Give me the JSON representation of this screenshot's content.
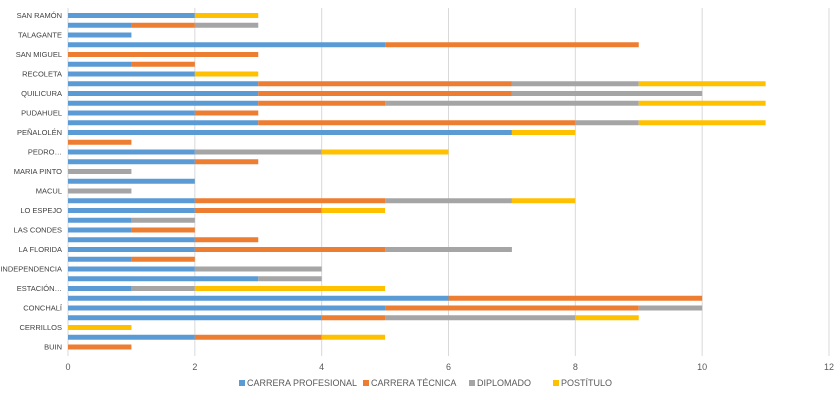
{
  "chart_data": {
    "type": "bar",
    "orientation": "horizontal",
    "stacked": true,
    "xlim": [
      0,
      12
    ],
    "x_ticks": [
      0,
      2,
      4,
      6,
      8,
      10,
      12
    ],
    "grid": true,
    "legend_position": "bottom",
    "categories": [
      "SAN RAMÓN",
      "",
      "TALAGANTE",
      "",
      "SAN MIGUEL",
      "",
      "RECOLETA",
      "",
      "QUILICURA",
      "",
      "PUDAHUEL",
      "",
      "PEÑALOLÉN",
      "",
      "PEDRO…",
      "",
      "MARIA PINTO",
      "",
      "MACUL",
      "",
      "LO ESPEJO",
      "",
      "LAS CONDES",
      "",
      "LA FLORIDA",
      "",
      "INDEPENDENCIA",
      "",
      "ESTACIÓN…",
      "",
      "CONCHALÍ",
      "",
      "CERRILLOS",
      "",
      "BUIN"
    ],
    "series": [
      {
        "name": "CARRERA PROFESIONAL",
        "color": "#5b9bd5",
        "values": [
          2,
          1,
          1,
          5,
          0,
          1,
          2,
          3,
          3,
          3,
          2,
          3,
          7,
          0,
          2,
          2,
          0,
          2,
          0,
          2,
          2,
          1,
          1,
          2,
          2,
          1,
          2,
          3,
          1,
          6,
          5,
          4,
          0,
          2,
          0
        ]
      },
      {
        "name": "CARRERA TÉCNICA",
        "color": "#ed7d31",
        "values": [
          0,
          1,
          0,
          4,
          3,
          1,
          0,
          4,
          4,
          2,
          1,
          5,
          0,
          1,
          0,
          1,
          0,
          0,
          0,
          3,
          2,
          0,
          1,
          1,
          3,
          1,
          0,
          0,
          0,
          4,
          4,
          1,
          0,
          2,
          1
        ]
      },
      {
        "name": "DIPLOMADO",
        "color": "#a5a5a5",
        "values": [
          0,
          1,
          0,
          0,
          0,
          0,
          0,
          2,
          3,
          4,
          0,
          1,
          0,
          0,
          2,
          0,
          1,
          0,
          1,
          2,
          0,
          1,
          0,
          0,
          2,
          0,
          2,
          1,
          1,
          0,
          1,
          3,
          0,
          0,
          0
        ]
      },
      {
        "name": "POSTÍTULO",
        "color": "#ffc000",
        "values": [
          1,
          0,
          0,
          0,
          0,
          0,
          1,
          2,
          0,
          2,
          0,
          2,
          1,
          0,
          2,
          0,
          0,
          0,
          0,
          1,
          1,
          0,
          0,
          0,
          0,
          0,
          0,
          0,
          3,
          0,
          0,
          1,
          1,
          1,
          0
        ]
      }
    ]
  }
}
